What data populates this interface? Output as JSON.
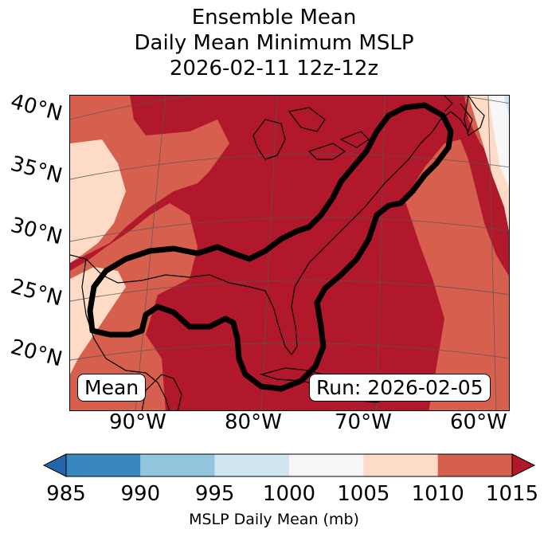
{
  "title": {
    "line1": "Ensemble Mean",
    "line2": "Daily Mean Minimum MSLP",
    "line3": "2026-02-11 12z-12z"
  },
  "map": {
    "latitude_labels": [
      "40°N",
      "35°N",
      "30°N",
      "25°N",
      "20°N"
    ],
    "longitude_labels": [
      "90°W",
      "80°W",
      "70°W",
      "60°W"
    ],
    "left_box": "Mean",
    "right_box": "Run: 2026-02-05",
    "fill_colors": {
      "985-990": "#3a87c0",
      "990-995": "#92c5de",
      "995-1000": "#d1e5f0",
      "1000-1005": "#f7f7f7",
      "1005-1010": "#fddbc7",
      "1010-1015": "#d6604d",
      "above-1015": "#b2182b"
    },
    "contour_color": "#000000"
  },
  "colorbar": {
    "ticks": [
      "985",
      "990",
      "995",
      "1000",
      "1005",
      "1010",
      "1015"
    ],
    "label": "MSLP Daily Mean (mb)",
    "colors": [
      "#2166ac",
      "#3a87c0",
      "#92c5de",
      "#d1e5f0",
      "#f7f7f7",
      "#fddbc7",
      "#d6604d",
      "#b2182b"
    ]
  }
}
